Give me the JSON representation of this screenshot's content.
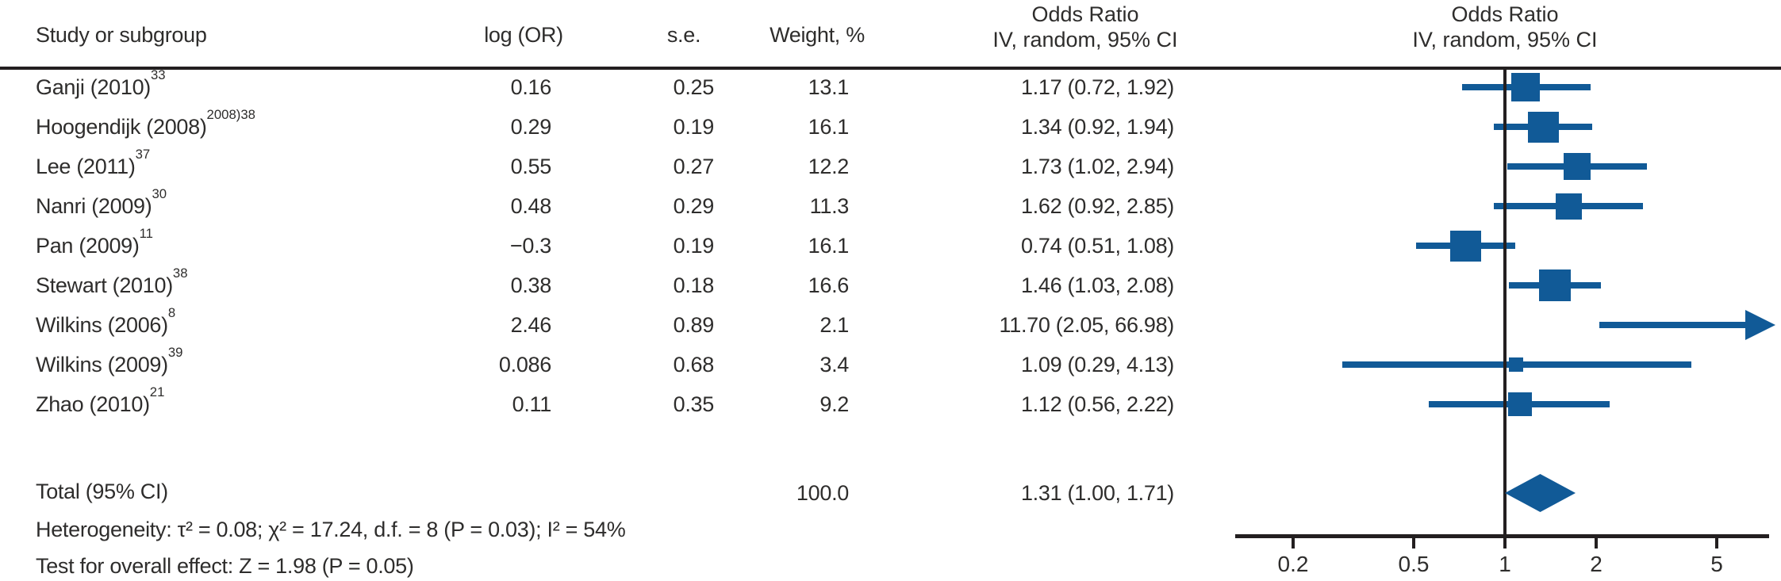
{
  "figure": {
    "kind": "forest-plot",
    "headers": {
      "study": "Study or subgroup",
      "log_or": "log (OR)",
      "se": "s.e.",
      "weight": "Weight, %",
      "or_line1": "Odds Ratio",
      "or_line2": "IV, random, 95% CI"
    },
    "footer": {
      "total_label": "Total (95% CI)",
      "total_weight": "100.0",
      "total_or_ci": "1.31 (1.00, 1.71)",
      "heterogeneity": "Heterogeneity: τ² = 0.08; χ² = 17.24, d.f. = 8 (P = 0.03); I² = 54%",
      "overall_effect": "Test for overall effect: Z = 1.98 (P = 0.05)"
    },
    "colors": {
      "marker_blue": "#115a97",
      "line_black": "#231f20",
      "text": "#2e2d2c"
    }
  },
  "chart_data": {
    "type": "forest",
    "x_scale": "log",
    "axis_ticks": [
      "0.2",
      "0.5",
      "1",
      "2",
      "5"
    ],
    "null_line_at": 1,
    "x_range_approx": [
      0.13,
      7.4
    ],
    "effect_measure": "Odds Ratio, IV, random, 95% CI",
    "studies": [
      {
        "label": "Ganji (2010)",
        "ref": "33",
        "log_or": "0.16",
        "se": "0.25",
        "weight": "13.1",
        "or_ci": "1.17 (0.72, 1.92)",
        "or": 1.17,
        "lo": 0.72,
        "hi": 1.92,
        "w": 13.1
      },
      {
        "label": "Hoogendijk (2008)",
        "ref": "2008)38",
        "log_or": "0.29",
        "se": "0.19",
        "weight": "16.1",
        "or_ci": "1.34 (0.92, 1.94)",
        "or": 1.34,
        "lo": 0.92,
        "hi": 1.94,
        "w": 16.1
      },
      {
        "label": "Lee (2011)",
        "ref": "37",
        "log_or": "0.55",
        "se": "0.27",
        "weight": "12.2",
        "or_ci": "1.73 (1.02, 2.94)",
        "or": 1.73,
        "lo": 1.02,
        "hi": 2.94,
        "w": 12.2
      },
      {
        "label": "Nanri (2009)",
        "ref": "30",
        "log_or": "0.48",
        "se": "0.29",
        "weight": "11.3",
        "or_ci": "1.62 (0.92, 2.85)",
        "or": 1.62,
        "lo": 0.92,
        "hi": 2.85,
        "w": 11.3
      },
      {
        "label": "Pan (2009)",
        "ref": "11",
        "log_or": "−0.3",
        "se": "0.19",
        "weight": "16.1",
        "or_ci": "0.74 (0.51, 1.08)",
        "or": 0.74,
        "lo": 0.51,
        "hi": 1.08,
        "w": 16.1
      },
      {
        "label": "Stewart (2010)",
        "ref": "38",
        "log_or": "0.38",
        "se": "0.18",
        "weight": "16.6",
        "or_ci": "1.46 (1.03, 2.08)",
        "or": 1.46,
        "lo": 1.03,
        "hi": 2.08,
        "w": 16.6
      },
      {
        "label": "Wilkins (2006)",
        "ref": "8",
        "log_or": "2.46",
        "se": "0.89",
        "weight": "2.1",
        "or_ci": "11.70 (2.05, 66.98)",
        "or": 11.7,
        "lo": 2.05,
        "hi": 66.98,
        "w": 2.1
      },
      {
        "label": "Wilkins (2009)",
        "ref": "39",
        "log_or": "0.086",
        "se": "0.68",
        "weight": "3.4",
        "or_ci": "1.09 (0.29, 4.13)",
        "or": 1.09,
        "lo": 0.29,
        "hi": 4.13,
        "w": 3.4
      },
      {
        "label": "Zhao (2010)",
        "ref": "21",
        "log_or": "0.11",
        "se": "0.35",
        "weight": "9.2",
        "or_ci": "1.12 (0.56, 2.22)",
        "or": 1.12,
        "lo": 0.56,
        "hi": 2.22,
        "w": 9.2
      }
    ],
    "total": {
      "label": "Total (95% CI)",
      "or": 1.31,
      "lo": 1.0,
      "hi": 1.71,
      "weight": "100.0",
      "or_ci": "1.31 (1.00, 1.71)"
    }
  }
}
